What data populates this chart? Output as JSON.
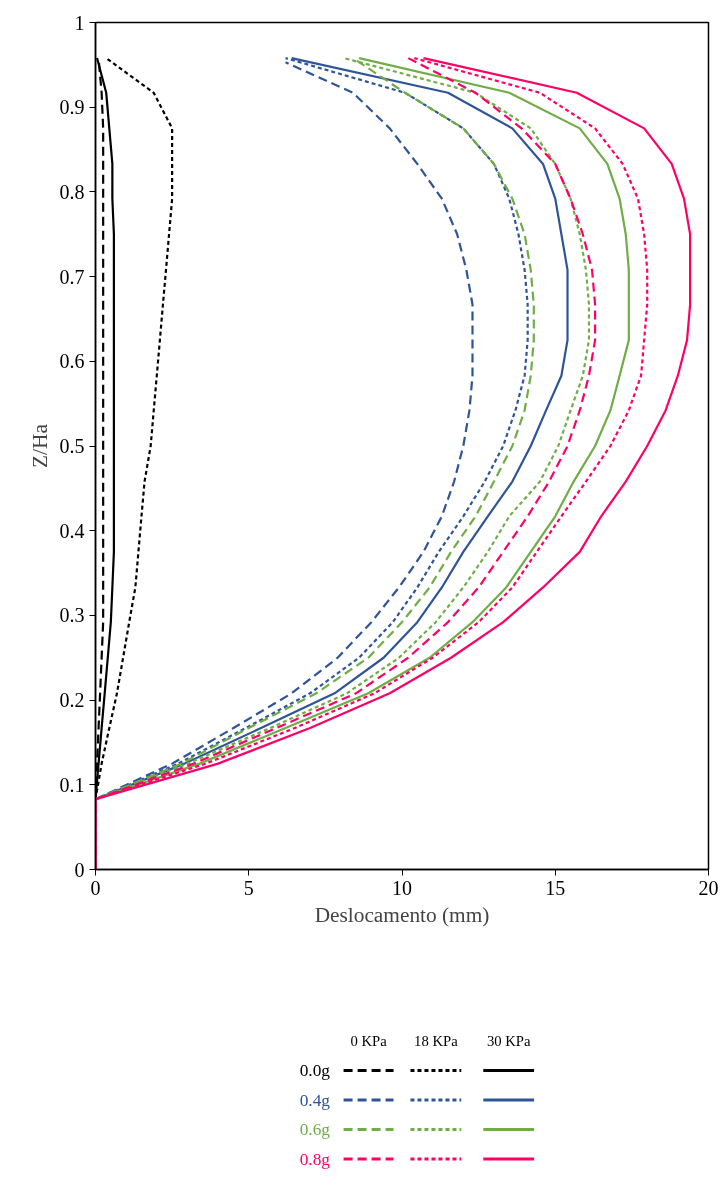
{
  "chart_data": {
    "type": "line",
    "xlabel": "Deslocamento (mm)",
    "ylabel": "Z/Ha",
    "xlim": [
      0,
      20
    ],
    "ylim": [
      0,
      1
    ],
    "xticks": [
      0,
      5,
      10,
      15,
      20
    ],
    "yticks": [
      0,
      0.1,
      0.2,
      0.3,
      0.4,
      0.5,
      0.6,
      0.7,
      0.8,
      0.9,
      1
    ],
    "annotations": [
      "0 KPa",
      "18 KPa",
      "30 KPa",
      "0.0g",
      "0.4g",
      "0.6g",
      "0.8g"
    ],
    "series": [
      {
        "color": "#000000",
        "line_style": "dashed",
        "x": [
          0,
          0,
          0.05,
          0.1,
          0.15,
          0.2,
          0.25,
          0.25,
          0.25,
          0.25,
          0.25,
          0.25,
          0.25,
          0.25,
          0.25,
          0.25,
          0.25,
          0.25,
          0.25,
          0.25,
          0.25,
          0.2,
          0.1
        ],
        "values": [
          0,
          0.083,
          0.125,
          0.167,
          0.208,
          0.25,
          0.292,
          0.333,
          0.375,
          0.417,
          0.458,
          0.5,
          0.542,
          0.583,
          0.625,
          0.667,
          0.708,
          0.75,
          0.792,
          0.833,
          0.875,
          0.917,
          0.958
        ]
      },
      {
        "color": "#000000",
        "line_style": "dotted",
        "x": [
          0,
          0,
          0.2,
          0.45,
          0.7,
          0.9,
          1.1,
          1.3,
          1.4,
          1.5,
          1.6,
          1.8,
          1.9,
          2.0,
          2.1,
          2.2,
          2.3,
          2.4,
          2.5,
          2.5,
          2.5,
          1.9,
          0.35
        ],
        "values": [
          0,
          0.083,
          0.125,
          0.167,
          0.208,
          0.25,
          0.292,
          0.333,
          0.375,
          0.417,
          0.458,
          0.5,
          0.542,
          0.583,
          0.625,
          0.667,
          0.708,
          0.75,
          0.792,
          0.833,
          0.875,
          0.917,
          0.958
        ]
      },
      {
        "color": "#000000",
        "line_style": "solid",
        "x": [
          0,
          0,
          0.1,
          0.2,
          0.3,
          0.4,
          0.5,
          0.55,
          0.6,
          0.6,
          0.6,
          0.6,
          0.6,
          0.6,
          0.6,
          0.6,
          0.6,
          0.6,
          0.55,
          0.55,
          0.45,
          0.35,
          0.05
        ],
        "values": [
          0,
          0.083,
          0.125,
          0.167,
          0.208,
          0.25,
          0.292,
          0.333,
          0.375,
          0.417,
          0.458,
          0.5,
          0.542,
          0.583,
          0.625,
          0.667,
          0.708,
          0.75,
          0.792,
          0.833,
          0.875,
          0.917,
          0.958
        ]
      },
      {
        "color": "#2f5597",
        "line_style": "dashed",
        "x": [
          0,
          0,
          2.5,
          4.5,
          6.4,
          7.9,
          9.0,
          9.9,
          10.7,
          11.3,
          11.7,
          12.0,
          12.2,
          12.3,
          12.3,
          12.3,
          12.1,
          11.8,
          11.3,
          10.5,
          9.6,
          8.4,
          6.2
        ],
        "values": [
          0,
          0.083,
          0.125,
          0.167,
          0.208,
          0.25,
          0.292,
          0.333,
          0.375,
          0.417,
          0.458,
          0.5,
          0.542,
          0.583,
          0.625,
          0.667,
          0.708,
          0.75,
          0.792,
          0.833,
          0.875,
          0.917,
          0.953
        ]
      },
      {
        "color": "#2f5597",
        "line_style": "dotted",
        "x": [
          0,
          0,
          2.7,
          4.9,
          7.0,
          8.6,
          9.7,
          10.5,
          11.2,
          12.0,
          12.7,
          13.3,
          13.7,
          14.0,
          14.1,
          14.1,
          14.0,
          13.8,
          13.5,
          13.0,
          12.0,
          10.1,
          6.2
        ],
        "values": [
          0,
          0.083,
          0.125,
          0.167,
          0.208,
          0.25,
          0.292,
          0.333,
          0.375,
          0.417,
          0.458,
          0.5,
          0.542,
          0.583,
          0.625,
          0.667,
          0.708,
          0.75,
          0.792,
          0.833,
          0.875,
          0.917,
          0.958
        ]
      },
      {
        "color": "#2f5597",
        "line_style": "solid",
        "x": [
          0,
          0,
          2.9,
          5.4,
          7.8,
          9.4,
          10.5,
          11.3,
          12.0,
          12.8,
          13.6,
          14.2,
          14.7,
          15.2,
          15.4,
          15.4,
          15.4,
          15.2,
          15.0,
          14.6,
          13.6,
          11.5,
          6.4
        ],
        "values": [
          0,
          0.083,
          0.125,
          0.167,
          0.208,
          0.25,
          0.292,
          0.333,
          0.375,
          0.417,
          0.458,
          0.5,
          0.542,
          0.583,
          0.625,
          0.667,
          0.708,
          0.75,
          0.792,
          0.833,
          0.875,
          0.917,
          0.958
        ]
      },
      {
        "color": "#70ad47",
        "line_style": "dashed",
        "x": [
          0,
          0,
          2.8,
          5.0,
          7.2,
          8.9,
          10.0,
          10.9,
          11.6,
          12.4,
          13.0,
          13.6,
          14.0,
          14.2,
          14.3,
          14.3,
          14.2,
          14.0,
          13.6,
          13.0,
          12.0,
          10.1,
          8.4
        ],
        "values": [
          0,
          0.083,
          0.125,
          0.167,
          0.208,
          0.25,
          0.292,
          0.333,
          0.375,
          0.417,
          0.458,
          0.5,
          0.542,
          0.583,
          0.625,
          0.667,
          0.708,
          0.75,
          0.792,
          0.833,
          0.875,
          0.917,
          0.958
        ]
      },
      {
        "color": "#70ad47",
        "line_style": "dotted",
        "x": [
          0,
          0,
          3.0,
          5.7,
          8.2,
          9.9,
          11.1,
          12.0,
          12.8,
          13.5,
          14.5,
          15.1,
          15.5,
          15.9,
          16.1,
          16.1,
          16.0,
          15.8,
          15.5,
          15.0,
          14.2,
          12.4,
          8.1
        ],
        "values": [
          0,
          0.083,
          0.125,
          0.167,
          0.208,
          0.25,
          0.292,
          0.333,
          0.375,
          0.417,
          0.458,
          0.5,
          0.542,
          0.583,
          0.625,
          0.667,
          0.708,
          0.75,
          0.792,
          0.833,
          0.875,
          0.917,
          0.958
        ]
      },
      {
        "color": "#70ad47",
        "line_style": "solid",
        "x": [
          0,
          0,
          3.4,
          6.2,
          8.9,
          10.9,
          12.3,
          13.4,
          14.2,
          15.0,
          15.6,
          16.3,
          16.8,
          17.1,
          17.4,
          17.4,
          17.4,
          17.3,
          17.1,
          16.7,
          15.8,
          13.5,
          8.6
        ],
        "values": [
          0,
          0.083,
          0.125,
          0.167,
          0.208,
          0.25,
          0.292,
          0.333,
          0.375,
          0.417,
          0.458,
          0.5,
          0.542,
          0.583,
          0.625,
          0.667,
          0.708,
          0.75,
          0.792,
          0.833,
          0.875,
          0.917,
          0.958
        ]
      },
      {
        "color": "#ff0066",
        "line_style": "dashed",
        "x": [
          0,
          0,
          3.2,
          5.9,
          8.5,
          10.2,
          11.5,
          12.5,
          13.3,
          14.1,
          14.8,
          15.4,
          15.8,
          16.1,
          16.3,
          16.3,
          16.2,
          15.9,
          15.5,
          15.0,
          13.9,
          12.4,
          10.2
        ],
        "values": [
          0,
          0.083,
          0.125,
          0.167,
          0.208,
          0.25,
          0.292,
          0.333,
          0.375,
          0.417,
          0.458,
          0.5,
          0.542,
          0.583,
          0.625,
          0.667,
          0.708,
          0.75,
          0.792,
          0.833,
          0.875,
          0.917,
          0.958
        ]
      },
      {
        "color": "#ff0066",
        "line_style": "dotted",
        "x": [
          0,
          0,
          3.6,
          6.5,
          9.1,
          11.0,
          12.5,
          13.6,
          14.4,
          15.2,
          16.0,
          16.8,
          17.4,
          17.8,
          17.9,
          18.0,
          18.0,
          17.9,
          17.7,
          17.2,
          16.3,
          14.5,
          10.4
        ],
        "values": [
          0,
          0.083,
          0.125,
          0.167,
          0.208,
          0.25,
          0.292,
          0.333,
          0.375,
          0.417,
          0.458,
          0.5,
          0.542,
          0.583,
          0.625,
          0.667,
          0.708,
          0.75,
          0.792,
          0.833,
          0.875,
          0.917,
          0.958
        ]
      },
      {
        "color": "#ff0066",
        "line_style": "solid",
        "x": [
          0,
          0,
          4.0,
          7.0,
          9.6,
          11.6,
          13.3,
          14.6,
          15.8,
          16.5,
          17.3,
          18.0,
          18.6,
          19.0,
          19.3,
          19.4,
          19.4,
          19.4,
          19.2,
          18.8,
          17.9,
          15.7,
          10.7
        ],
        "values": [
          0,
          0.083,
          0.125,
          0.167,
          0.208,
          0.25,
          0.292,
          0.333,
          0.375,
          0.417,
          0.458,
          0.5,
          0.542,
          0.583,
          0.625,
          0.667,
          0.708,
          0.75,
          0.792,
          0.833,
          0.875,
          0.917,
          0.958
        ]
      }
    ]
  }
}
